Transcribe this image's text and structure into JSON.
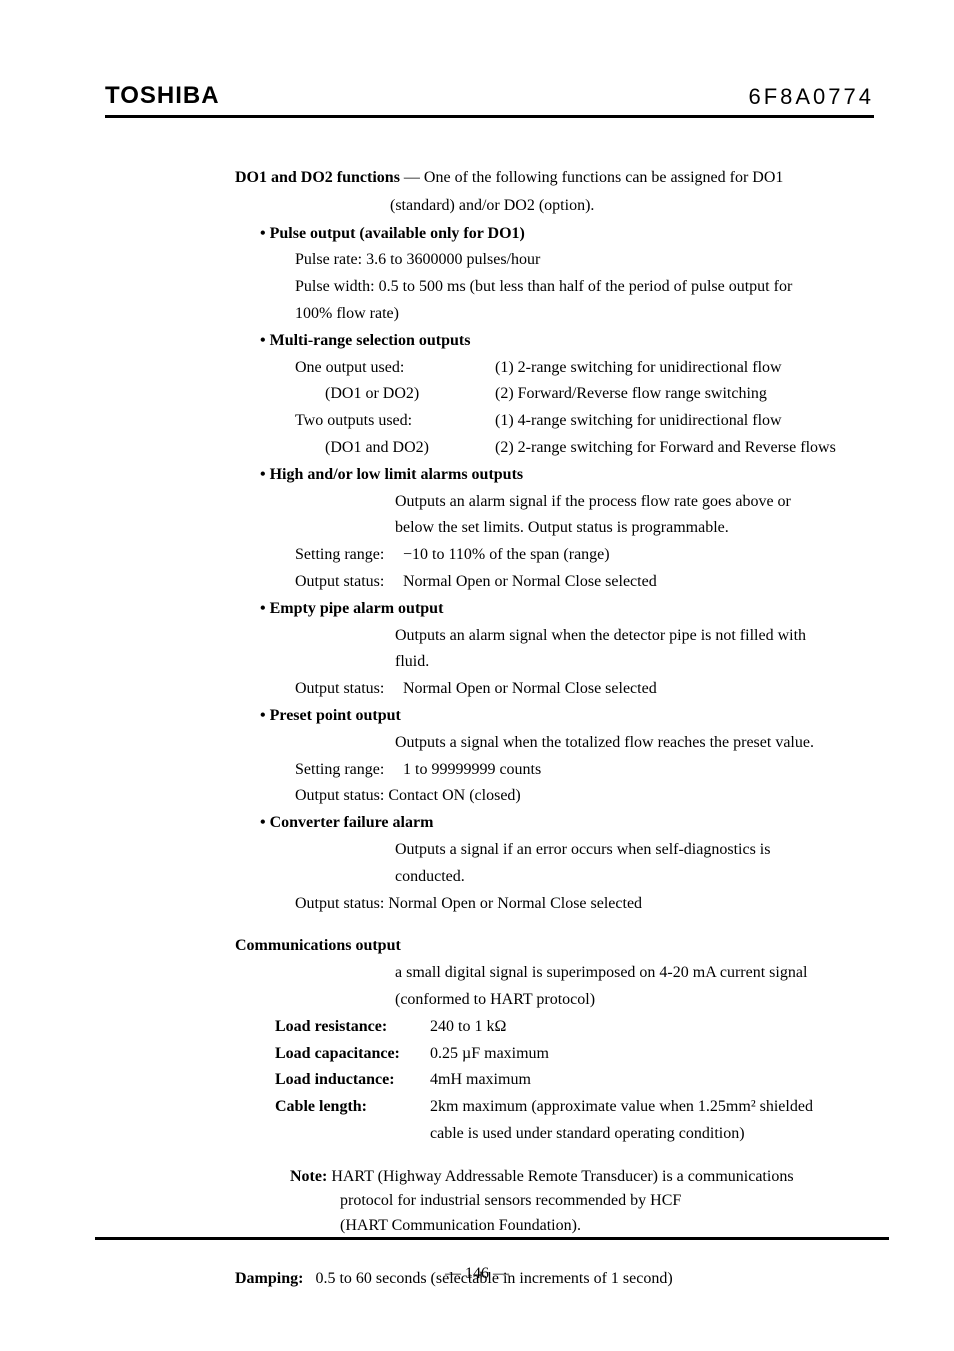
{
  "header": {
    "brand": "TOSHIBA",
    "doc_code": "6F8A0774"
  },
  "intro": {
    "title": "DO1 and DO2 functions",
    "text1": " — One of the following functions can be assigned for DO1",
    "text2": "(standard) and/or DO2 (option)."
  },
  "pulse": {
    "title": "• Pulse output (available only for DO1)",
    "rate": "Pulse rate:   3.6 to 3600000 pulses/hour",
    "width": "Pulse width: 0.5 to 500 ms (but less than half of the period of pulse output for",
    "width2": "100% flow rate)"
  },
  "multi": {
    "title": "• Multi-range selection outputs",
    "r1l": "One output used:",
    "r1r": "(1) 2-range switching for unidirectional flow",
    "r2l": "(DO1 or DO2)",
    "r2r": "(2) Forward/Reverse flow range switching",
    "r3l": "Two outputs used:",
    "r3r": "(1) 4-range switching for unidirectional flow",
    "r4l": "(DO1 and DO2)",
    "r4r": "(2) 2-range switching for Forward and Reverse flows"
  },
  "high": {
    "title": "• High and/or low limit alarms outputs",
    "desc1": "Outputs an alarm signal if the process flow rate goes above or",
    "desc2": "below the set limits. Output status is programmable.",
    "setl": "Setting range:",
    "setv": "−10 to 110% of the span (range)",
    "outl": "Output status:",
    "outv": "Normal Open or Normal Close selected"
  },
  "empty": {
    "title": "• Empty pipe alarm output",
    "desc1": "Outputs an alarm signal when the detector pipe is not filled with",
    "desc2": "fluid.",
    "outl": "Output status:",
    "outv": "Normal Open or Normal Close selected"
  },
  "preset": {
    "title": "• Preset point output",
    "desc1": "Outputs a signal when the totalized flow reaches the preset value.",
    "setl": "Setting range:",
    "setv": "1 to 99999999 counts",
    "out": "Output status: Contact ON (closed)"
  },
  "conv": {
    "title": "• Converter failure alarm",
    "desc1": "Outputs a signal if an error occurs when self-diagnostics is",
    "desc2": "conducted.",
    "out": "Output status: Normal Open or Normal Close selected"
  },
  "comm": {
    "title": "Communications output",
    "desc1": "a small digital signal is superimposed on 4-20 mA current signal",
    "desc2": "(conformed to HART protocol)",
    "r1l": "Load resistance:",
    "r1v": "240 to 1 kΩ",
    "r2l": "Load capacitance:",
    "r2v": "0.25 µF maximum",
    "r3l": "Load inductance:",
    "r3v": "4mH maximum",
    "r4l": "Cable length:",
    "r4v": "2km maximum (approximate value when 1.25mm² shielded",
    "r4v2": "cable is used under standard operating condition)"
  },
  "note": {
    "l1": "Note: HART (Highway Addressable Remote Transducer) is a communications",
    "l2": "protocol for industrial sensors recommended by HCF",
    "l3": "(HART Communication Foundation)."
  },
  "damping": {
    "label": "Damping:",
    "val": "0.5 to 60 seconds (selectable in increments of 1 second)"
  },
  "page": "—   146   —"
}
